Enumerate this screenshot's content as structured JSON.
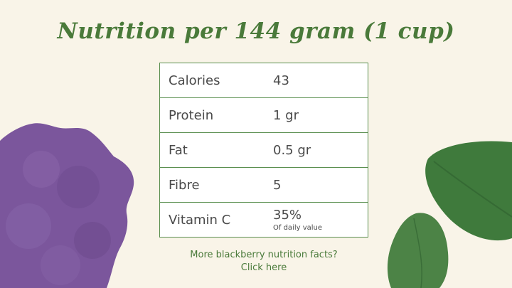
{
  "title": "Nutrition per 144 gram (1 cup)",
  "nutrition": {
    "rows": [
      {
        "name": "Calories",
        "value": "43",
        "note": ""
      },
      {
        "name": "Protein",
        "value": "1 gr",
        "note": ""
      },
      {
        "name": "Fat",
        "value": "0.5 gr",
        "note": ""
      },
      {
        "name": "Fibre",
        "value": "5",
        "note": ""
      },
      {
        "name": "Vitamin C",
        "value": "35%",
        "note": "Of daily value"
      }
    ]
  },
  "link": {
    "line1": "More blackberry nutrition facts?",
    "line2": "Click here"
  },
  "colors": {
    "background": "#f9f4e8",
    "title_green": "#4a7a3a",
    "border_green": "#5a8f4f",
    "berry_purple": "#7b569c",
    "leaf_green": "#3f7a3c"
  }
}
